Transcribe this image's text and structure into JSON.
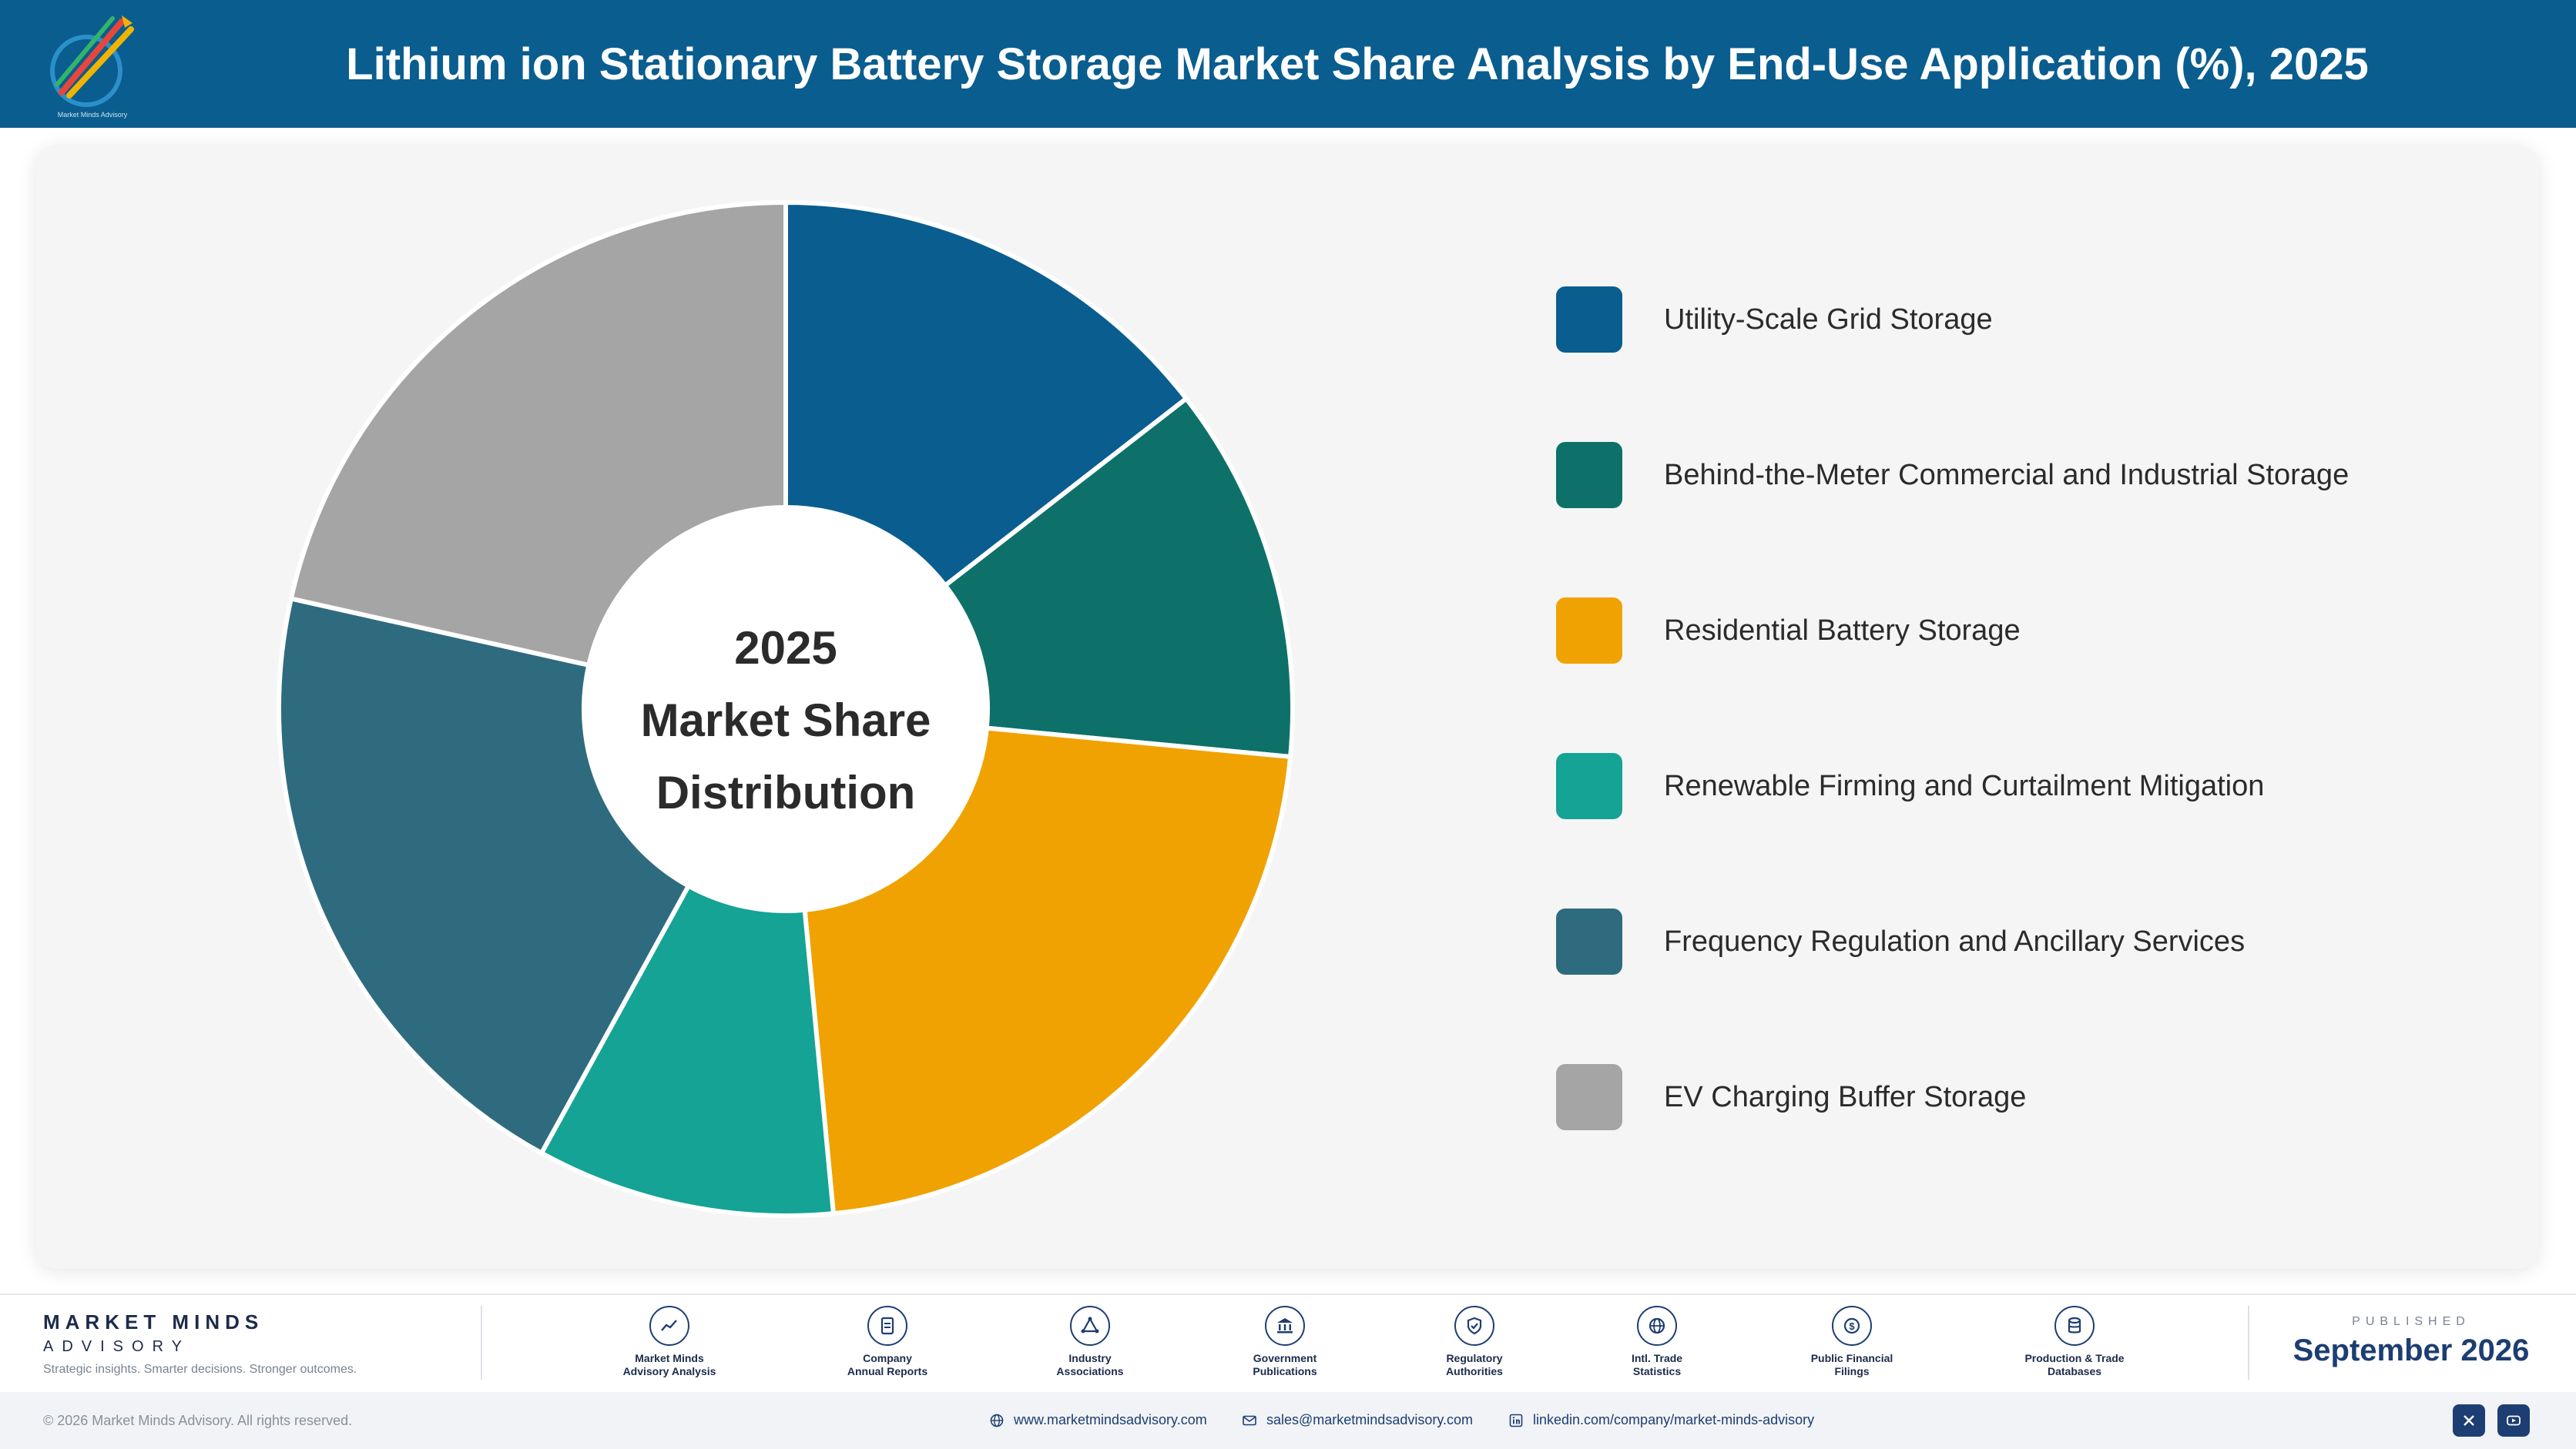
{
  "header": {
    "title": "Lithium ion Stationary Battery Storage Market Share Analysis by End-Use Application (%), 2025",
    "logo_text": "Market Minds Advisory"
  },
  "chart_data": {
    "type": "pie",
    "variant": "donut",
    "title": "Lithium ion Stationary Battery Storage Market Share Analysis by End-Use Application (%), 2025",
    "center_label": [
      "2025",
      "Market Share",
      "Distribution"
    ],
    "categories": [
      "Utility-Scale Grid Storage",
      "Behind-the-Meter Commercial and Industrial Storage",
      "Residential Battery Storage",
      "Renewable Firming and Curtailment Mitigation",
      "Frequency Regulation and Ancillary Services",
      "EV Charging Buffer Storage"
    ],
    "values": [
      14.5,
      12.0,
      22.0,
      9.5,
      20.5,
      21.5
    ],
    "colors": [
      "#0a5d8f",
      "#0d7169",
      "#f0a202",
      "#14a394",
      "#2f6b7f",
      "#a5a5a5"
    ],
    "start_angle": "12 o'clock, clockwise",
    "data_labels_shown": false,
    "legend_position": "right"
  },
  "footer": {
    "brand_name": "MARKET MINDS",
    "brand_sub": "ADVISORY",
    "brand_tagline": "Strategic insights. Smarter decisions. Stronger outcomes.",
    "sources": [
      {
        "label": "Market Minds\nAdvisory Analysis",
        "icon": "trend-chart-icon"
      },
      {
        "label": "Company\nAnnual Reports",
        "icon": "document-icon"
      },
      {
        "label": "Industry\nAssociations",
        "icon": "network-icon"
      },
      {
        "label": "Government\nPublications",
        "icon": "government-building-icon"
      },
      {
        "label": "Regulatory\nAuthorities",
        "icon": "shield-check-icon"
      },
      {
        "label": "Intl. Trade\nStatistics",
        "icon": "globe-icon"
      },
      {
        "label": "Public Financial\nFilings",
        "icon": "dollar-coin-icon"
      },
      {
        "label": "Production & Trade\nDatabases",
        "icon": "database-icon"
      }
    ],
    "published_label": "PUBLISHED",
    "published_date": "September 2026",
    "copyright": "© 2026 Market Minds Advisory. All rights reserved.",
    "website": "www.marketmindsadvisory.com",
    "email": "sales@marketmindsadvisory.com",
    "linkedin": "linkedin.com/company/market-minds-advisory",
    "social": [
      "x-icon",
      "youtube-icon"
    ]
  }
}
